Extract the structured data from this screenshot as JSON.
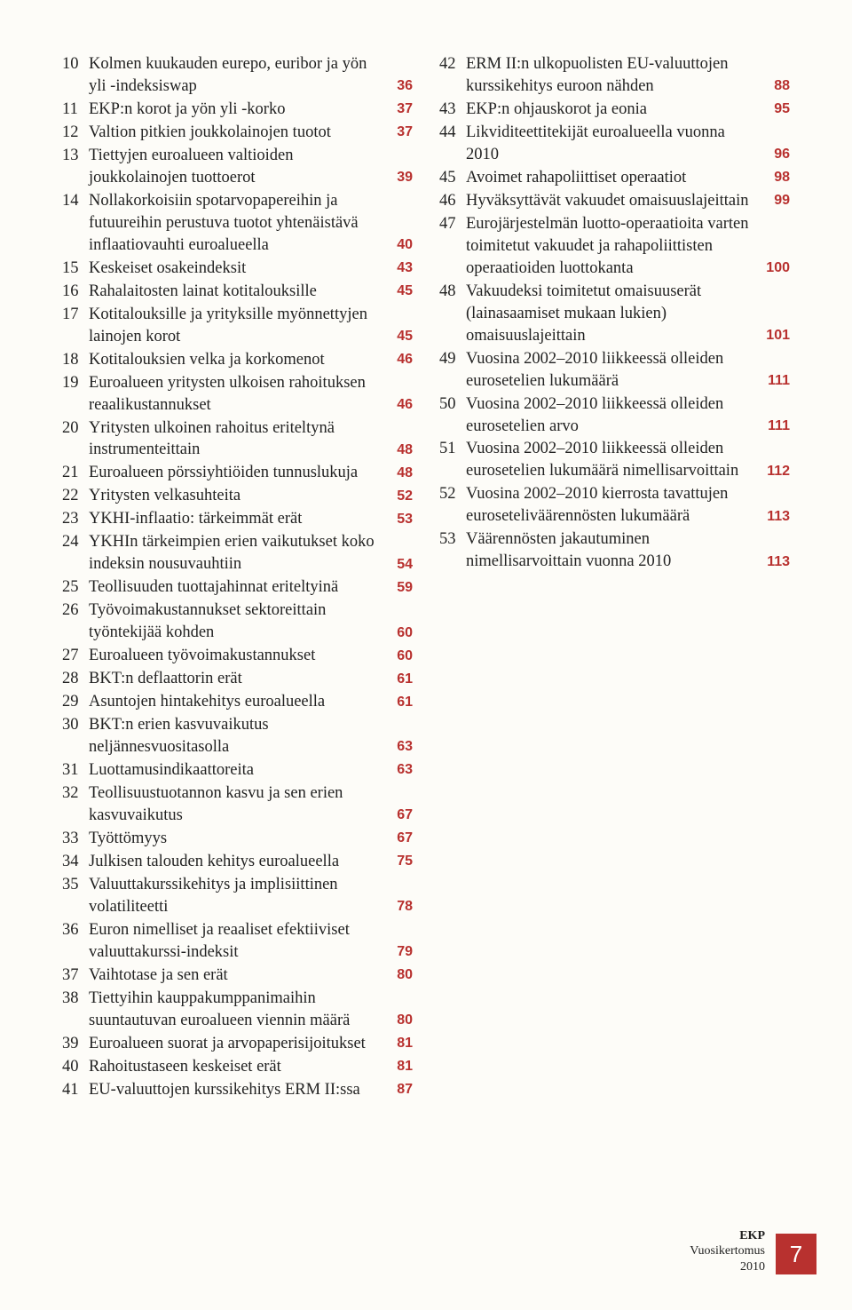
{
  "left": [
    {
      "n": "10",
      "t": "Kolmen kuukauden eurepo, euribor ja yön yli -indeksiswap",
      "p": "36"
    },
    {
      "n": "11",
      "t": "EKP:n korot ja yön yli -korko",
      "p": "37"
    },
    {
      "n": "12",
      "t": "Valtion pitkien joukkolainojen tuotot",
      "p": "37"
    },
    {
      "n": "13",
      "t": "Tiettyjen euroalueen valtioiden joukkolainojen tuottoerot",
      "p": "39"
    },
    {
      "n": "14",
      "t": "Nollakorkoisiin spotarvopapereihin ja futuureihin perustuva tuotot yhtenäistävä inflaatiovauhti euroalueella",
      "p": "40"
    },
    {
      "n": "15",
      "t": "Keskeiset osakeindeksit",
      "p": "43"
    },
    {
      "n": "16",
      "t": "Rahalaitosten lainat kotitalouksille",
      "p": "45"
    },
    {
      "n": "17",
      "t": "Kotitalouksille ja yrityksille myönnettyjen lainojen korot",
      "p": "45"
    },
    {
      "n": "18",
      "t": "Kotitalouksien velka ja korkomenot",
      "p": "46"
    },
    {
      "n": "19",
      "t": "Euroalueen yritysten ulkoisen rahoituksen reaalikustannukset",
      "p": "46"
    },
    {
      "n": "20",
      "t": "Yritysten ulkoinen rahoitus eriteltynä instrumenteittain",
      "p": "48"
    },
    {
      "n": "21",
      "t": "Euroalueen pörssiyhtiöiden tunnuslukuja",
      "p": "48"
    },
    {
      "n": "22",
      "t": "Yritysten velkasuhteita",
      "p": "52"
    },
    {
      "n": "23",
      "t": "YKHI-inflaatio: tärkeimmät erät",
      "p": "53"
    },
    {
      "n": "24",
      "t": "YKHIn tärkeimpien erien vaikutukset koko indeksin nousuvauhtiin",
      "p": "54"
    },
    {
      "n": "25",
      "t": "Teollisuuden tuottajahinnat eriteltyinä",
      "p": "59"
    },
    {
      "n": "26",
      "t": "Työvoimakustannukset sektoreittain työntekijää kohden",
      "p": "60"
    },
    {
      "n": "27",
      "t": "Euroalueen työvoimakustannukset",
      "p": "60"
    },
    {
      "n": "28",
      "t": "BKT:n deflaattorin erät",
      "p": "61"
    },
    {
      "n": "29",
      "t": "Asuntojen hintakehitys euroalueella",
      "p": "61"
    },
    {
      "n": "30",
      "t": "BKT:n erien kasvuvaikutus neljännesvuositasolla",
      "p": "63"
    },
    {
      "n": "31",
      "t": "Luottamusindikaattoreita",
      "p": "63"
    },
    {
      "n": "32",
      "t": "Teollisuustuotannon kasvu ja sen erien kasvuvaikutus",
      "p": "67"
    },
    {
      "n": "33",
      "t": "Työttömyys",
      "p": "67"
    },
    {
      "n": "34",
      "t": "Julkisen talouden kehitys euroalueella",
      "p": "75"
    },
    {
      "n": "35",
      "t": "Valuuttakurssikehitys ja implisiittinen volatiliteetti",
      "p": "78"
    },
    {
      "n": "36",
      "t": "Euron nimelliset ja reaaliset efektiiviset valuuttakurssi-indeksit",
      "p": "79"
    },
    {
      "n": "37",
      "t": "Vaihtotase ja sen erät",
      "p": "80"
    },
    {
      "n": "38",
      "t": "Tiettyihin kauppakumppanimaihin suuntautuvan euroalueen viennin määrä",
      "p": "80"
    },
    {
      "n": "39",
      "t": "Euroalueen suorat ja arvopaperisijoitukset",
      "p": "81"
    },
    {
      "n": "40",
      "t": "Rahoitustaseen keskeiset erät",
      "p": "81"
    },
    {
      "n": "41",
      "t": "EU-valuuttojen kurssikehitys ERM II:ssa",
      "p": "87"
    }
  ],
  "right": [
    {
      "n": "42",
      "t": "ERM II:n ulkopuolisten EU-valuuttojen kurssikehitys euroon nähden",
      "p": "88"
    },
    {
      "n": "43",
      "t": "EKP:n ohjauskorot ja eonia",
      "p": "95"
    },
    {
      "n": "44",
      "t": "Likviditeettitekijät euroalueella vuonna 2010",
      "p": "96"
    },
    {
      "n": "45",
      "t": "Avoimet rahapoliittiset operaatiot",
      "p": "98"
    },
    {
      "n": "46",
      "t": "Hyväksyttävät vakuudet omaisuuslajeittain",
      "p": "99"
    },
    {
      "n": "47",
      "t": "Eurojärjestelmän luotto-operaatioita varten toimitetut vakuudet ja rahapoliittisten operaatioiden luottokanta",
      "p": "100"
    },
    {
      "n": "48",
      "t": "Vakuudeksi toimitetut omaisuuserät (lainasaamiset mukaan lukien) omaisuuslajeittain",
      "p": "101"
    },
    {
      "n": "49",
      "t": "Vuosina 2002–2010 liikkeessä olleiden eurosetelien lukumäärä",
      "p": "111"
    },
    {
      "n": "50",
      "t": "Vuosina 2002–2010 liikkeessä olleiden eurosetelien arvo",
      "p": "111"
    },
    {
      "n": "51",
      "t": "Vuosina 2002–2010 liikkeessä olleiden eurosetelien lukumäärä nimellisarvoittain",
      "p": "112"
    },
    {
      "n": "52",
      "t": "Vuosina 2002–2010 kierrosta tavattujen euroseteliväärennösten lukumäärä",
      "p": "113"
    },
    {
      "n": "53",
      "t": "Väärennösten jakautuminen nimellisarvoittain vuonna 2010",
      "p": "113"
    }
  ],
  "footer": {
    "line1": "EKP",
    "line2": "Vuosikertomus",
    "line3": "2010",
    "page": "7"
  }
}
